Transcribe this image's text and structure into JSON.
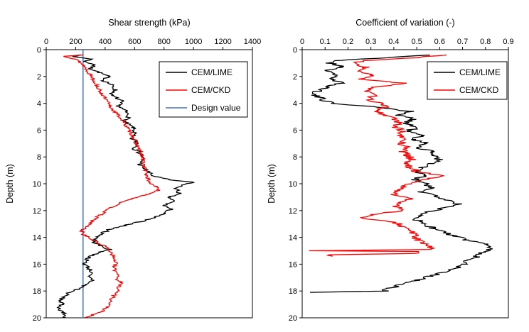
{
  "figure": {
    "background": "#ffffff",
    "axis_color": "#000000"
  },
  "chart_data": [
    {
      "type": "line",
      "title": "Shear strength (kPa)",
      "ylabel": "Depth (m)",
      "x_axis_position": "top",
      "y_inverted": true,
      "xlim": [
        0,
        1400
      ],
      "ylim": [
        0,
        20
      ],
      "xticks": [
        0,
        200,
        400,
        600,
        800,
        1000,
        1200,
        1400
      ],
      "xtick_labels": [
        "0",
        "200",
        "400",
        "600",
        "800",
        "1000",
        "1200",
        "1400"
      ],
      "yticks": [
        0,
        2,
        4,
        6,
        8,
        10,
        12,
        14,
        16,
        18,
        20
      ],
      "ytick_labels": [
        "0",
        "2",
        "4",
        "6",
        "8",
        "10",
        "12",
        "14",
        "16",
        "18",
        "20"
      ],
      "grid": false,
      "legend_position": "upper-right",
      "legend": [
        {
          "label": "CEM/LIME",
          "color": "#000000"
        },
        {
          "label": "CEM/CKD",
          "color": "#ff0000"
        },
        {
          "label": "Design value",
          "color": "#4472c4"
        }
      ],
      "design_value": 250,
      "design_value_color": "#4472c4",
      "series": [
        {
          "name": "CEM/LIME",
          "color": "#000000",
          "noise": 18,
          "seed": 7,
          "points": [
            [
              0.4,
              240
            ],
            [
              0.5,
              170
            ],
            [
              0.7,
              310
            ],
            [
              0.9,
              260
            ],
            [
              1.1,
              330
            ],
            [
              1.4,
              300
            ],
            [
              1.7,
              360
            ],
            [
              2.0,
              420
            ],
            [
              2.3,
              390
            ],
            [
              2.6,
              440
            ],
            [
              3.0,
              470
            ],
            [
              3.4,
              440
            ],
            [
              3.8,
              510
            ],
            [
              4.2,
              490
            ],
            [
              4.6,
              540
            ],
            [
              5.0,
              560
            ],
            [
              5.4,
              530
            ],
            [
              5.8,
              590
            ],
            [
              6.2,
              600
            ],
            [
              6.6,
              575
            ],
            [
              7.0,
              625
            ],
            [
              7.4,
              600
            ],
            [
              7.8,
              645
            ],
            [
              8.2,
              655
            ],
            [
              8.6,
              635
            ],
            [
              9.0,
              680
            ],
            [
              9.4,
              720
            ],
            [
              9.7,
              830
            ],
            [
              9.9,
              1000
            ],
            [
              10.1,
              920
            ],
            [
              10.4,
              880
            ],
            [
              10.7,
              905
            ],
            [
              11.0,
              830
            ],
            [
              11.3,
              865
            ],
            [
              11.6,
              800
            ],
            [
              11.9,
              845
            ],
            [
              12.2,
              800
            ],
            [
              12.5,
              735
            ],
            [
              12.8,
              650
            ],
            [
              13.1,
              540
            ],
            [
              13.4,
              430
            ],
            [
              13.7,
              380
            ],
            [
              14.0,
              350
            ],
            [
              14.3,
              320
            ],
            [
              14.6,
              360
            ],
            [
              14.9,
              430
            ],
            [
              15.1,
              370
            ],
            [
              15.4,
              300
            ],
            [
              15.7,
              275
            ],
            [
              16.0,
              260
            ],
            [
              16.3,
              290
            ],
            [
              16.6,
              310
            ],
            [
              16.9,
              280
            ],
            [
              17.2,
              320
            ],
            [
              17.5,
              270
            ],
            [
              17.8,
              230
            ],
            [
              18.1,
              160
            ],
            [
              18.4,
              120
            ],
            [
              18.7,
              95
            ],
            [
              19.0,
              105
            ],
            [
              19.3,
              90
            ],
            [
              19.6,
              115
            ],
            [
              20.0,
              130
            ]
          ]
        },
        {
          "name": "CEM/CKD",
          "color": "#ff0000",
          "noise": 14,
          "seed": 13,
          "points": [
            [
              0.4,
              250
            ],
            [
              0.5,
              130
            ],
            [
              0.7,
              195
            ],
            [
              0.9,
              225
            ],
            [
              1.2,
              255
            ],
            [
              1.5,
              275
            ],
            [
              1.8,
              295
            ],
            [
              2.1,
              315
            ],
            [
              2.4,
              330
            ],
            [
              2.7,
              345
            ],
            [
              3.0,
              360
            ],
            [
              3.3,
              380
            ],
            [
              3.6,
              395
            ],
            [
              3.9,
              415
            ],
            [
              4.2,
              430
            ],
            [
              4.5,
              455
            ],
            [
              4.8,
              480
            ],
            [
              5.1,
              505
            ],
            [
              5.4,
              525
            ],
            [
              5.7,
              545
            ],
            [
              6.0,
              560
            ],
            [
              6.3,
              580
            ],
            [
              6.6,
              595
            ],
            [
              6.9,
              610
            ],
            [
              7.2,
              620
            ],
            [
              7.5,
              635
            ],
            [
              7.8,
              645
            ],
            [
              8.1,
              655
            ],
            [
              8.4,
              660
            ],
            [
              8.7,
              665
            ],
            [
              9.0,
              672
            ],
            [
              9.3,
              680
            ],
            [
              9.6,
              690
            ],
            [
              9.9,
              700
            ],
            [
              10.2,
              745
            ],
            [
              10.5,
              760
            ],
            [
              10.8,
              690
            ],
            [
              11.1,
              590
            ],
            [
              11.4,
              510
            ],
            [
              11.7,
              450
            ],
            [
              12.0,
              410
            ],
            [
              12.3,
              370
            ],
            [
              12.6,
              330
            ],
            [
              12.9,
              305
            ],
            [
              13.2,
              275
            ],
            [
              13.5,
              240
            ],
            [
              13.8,
              255
            ],
            [
              14.1,
              300
            ],
            [
              14.4,
              350
            ],
            [
              14.7,
              405
            ],
            [
              15.0,
              435
            ],
            [
              15.3,
              450
            ],
            [
              15.6,
              460
            ],
            [
              15.9,
              475
            ],
            [
              16.2,
              455
            ],
            [
              16.5,
              470
            ],
            [
              16.8,
              495
            ],
            [
              17.1,
              480
            ],
            [
              17.4,
              510
            ],
            [
              17.7,
              495
            ],
            [
              18.0,
              485
            ],
            [
              18.3,
              465
            ],
            [
              18.6,
              445
            ],
            [
              18.9,
              430
            ],
            [
              19.2,
              415
            ],
            [
              19.5,
              380
            ],
            [
              19.8,
              310
            ],
            [
              20.0,
              255
            ]
          ]
        }
      ]
    },
    {
      "type": "line",
      "title": "Coefficient of variation (-)",
      "ylabel": "Depth (m)",
      "x_axis_position": "top",
      "y_inverted": true,
      "xlim": [
        0,
        0.9
      ],
      "ylim": [
        0,
        20
      ],
      "xticks": [
        0,
        0.1,
        0.2,
        0.3,
        0.4,
        0.5,
        0.6,
        0.7,
        0.8,
        0.9
      ],
      "xtick_labels": [
        "0",
        "0.1",
        "0.2",
        "0.3",
        "0.4",
        "0.5",
        "0.6",
        "0.7",
        "0.8",
        "0.9"
      ],
      "yticks": [
        0,
        2,
        4,
        6,
        8,
        10,
        12,
        14,
        16,
        18,
        20
      ],
      "ytick_labels": [
        "0",
        "2",
        "4",
        "6",
        "8",
        "10",
        "12",
        "14",
        "16",
        "18",
        "20"
      ],
      "grid": false,
      "legend_position": "upper-right",
      "legend": [
        {
          "label": "CEM/LIME",
          "color": "#000000"
        },
        {
          "label": "CEM/CKD",
          "color": "#ff0000"
        }
      ],
      "series": [
        {
          "name": "CEM/LIME",
          "color": "#000000",
          "noise": 0.022,
          "seed": 21,
          "points": [
            [
              0.4,
              0.56
            ],
            [
              0.6,
              0.36
            ],
            [
              0.8,
              0.16
            ],
            [
              1.0,
              0.12
            ],
            [
              1.3,
              0.18
            ],
            [
              1.6,
              0.1
            ],
            [
              1.9,
              0.16
            ],
            [
              2.2,
              0.12
            ],
            [
              2.5,
              0.17
            ],
            [
              2.8,
              0.11
            ],
            [
              3.1,
              0.07
            ],
            [
              3.4,
              0.05
            ],
            [
              3.7,
              0.09
            ],
            [
              4.0,
              0.13
            ],
            [
              4.3,
              0.34
            ],
            [
              4.6,
              0.47
            ],
            [
              4.9,
              0.42
            ],
            [
              5.2,
              0.49
            ],
            [
              5.5,
              0.45
            ],
            [
              5.8,
              0.5
            ],
            [
              6.1,
              0.46
            ],
            [
              6.4,
              0.52
            ],
            [
              6.7,
              0.49
            ],
            [
              7.0,
              0.54
            ],
            [
              7.3,
              0.51
            ],
            [
              7.6,
              0.56
            ],
            [
              7.9,
              0.58
            ],
            [
              8.2,
              0.6
            ],
            [
              8.5,
              0.56
            ],
            [
              8.8,
              0.52
            ],
            [
              9.1,
              0.5
            ],
            [
              9.4,
              0.53
            ],
            [
              9.7,
              0.49
            ],
            [
              10.0,
              0.54
            ],
            [
              10.3,
              0.56
            ],
            [
              10.6,
              0.52
            ],
            [
              10.9,
              0.58
            ],
            [
              11.2,
              0.63
            ],
            [
              11.5,
              0.68
            ],
            [
              11.8,
              0.62
            ],
            [
              12.1,
              0.56
            ],
            [
              12.4,
              0.52
            ],
            [
              12.7,
              0.5
            ],
            [
              13.0,
              0.53
            ],
            [
              13.3,
              0.57
            ],
            [
              13.6,
              0.62
            ],
            [
              13.9,
              0.66
            ],
            [
              14.2,
              0.72
            ],
            [
              14.5,
              0.8
            ],
            [
              14.8,
              0.84
            ],
            [
              15.1,
              0.79
            ],
            [
              15.4,
              0.76
            ],
            [
              15.7,
              0.73
            ],
            [
              16.0,
              0.71
            ],
            [
              16.3,
              0.67
            ],
            [
              16.6,
              0.62
            ],
            [
              16.9,
              0.56
            ],
            [
              17.2,
              0.5
            ],
            [
              17.5,
              0.44
            ],
            [
              17.8,
              0.38
            ],
            [
              18.0,
              0.36
            ],
            [
              18.1,
              0.02
            ]
          ]
        },
        {
          "name": "CEM/CKD",
          "color": "#ff0000",
          "noise": 0.02,
          "seed": 33,
          "points": [
            [
              0.4,
              0.62
            ],
            [
              0.6,
              0.5
            ],
            [
              0.8,
              0.28
            ],
            [
              1.0,
              0.22
            ],
            [
              1.3,
              0.28
            ],
            [
              1.6,
              0.24
            ],
            [
              1.9,
              0.3
            ],
            [
              2.2,
              0.26
            ],
            [
              2.5,
              0.44
            ],
            [
              2.8,
              0.32
            ],
            [
              3.1,
              0.28
            ],
            [
              3.4,
              0.31
            ],
            [
              3.7,
              0.29
            ],
            [
              4.0,
              0.34
            ],
            [
              4.3,
              0.36
            ],
            [
              4.6,
              0.32
            ],
            [
              4.9,
              0.37
            ],
            [
              5.2,
              0.4
            ],
            [
              5.5,
              0.42
            ],
            [
              5.8,
              0.41
            ],
            [
              6.1,
              0.44
            ],
            [
              6.4,
              0.42
            ],
            [
              6.7,
              0.45
            ],
            [
              7.0,
              0.43
            ],
            [
              7.3,
              0.46
            ],
            [
              7.6,
              0.44
            ],
            [
              7.9,
              0.46
            ],
            [
              8.2,
              0.48
            ],
            [
              8.5,
              0.45
            ],
            [
              8.8,
              0.47
            ],
            [
              9.1,
              0.5
            ],
            [
              9.4,
              0.62
            ],
            [
              9.6,
              0.56
            ],
            [
              9.9,
              0.48
            ],
            [
              10.2,
              0.44
            ],
            [
              10.5,
              0.42
            ],
            [
              10.8,
              0.4
            ],
            [
              11.1,
              0.47
            ],
            [
              11.4,
              0.43
            ],
            [
              11.7,
              0.41
            ],
            [
              12.0,
              0.45
            ],
            [
              12.3,
              0.3
            ],
            [
              12.6,
              0.26
            ],
            [
              12.9,
              0.41
            ],
            [
              13.2,
              0.44
            ],
            [
              13.5,
              0.47
            ],
            [
              13.8,
              0.49
            ],
            [
              14.1,
              0.5
            ],
            [
              14.4,
              0.52
            ],
            [
              14.7,
              0.55
            ],
            [
              14.9,
              0.57
            ],
            [
              15.0,
              0.04
            ],
            [
              15.05,
              0.52
            ],
            [
              15.2,
              0.5
            ],
            [
              15.3,
              0.1
            ],
            [
              15.4,
              0.12
            ]
          ]
        }
      ]
    }
  ]
}
